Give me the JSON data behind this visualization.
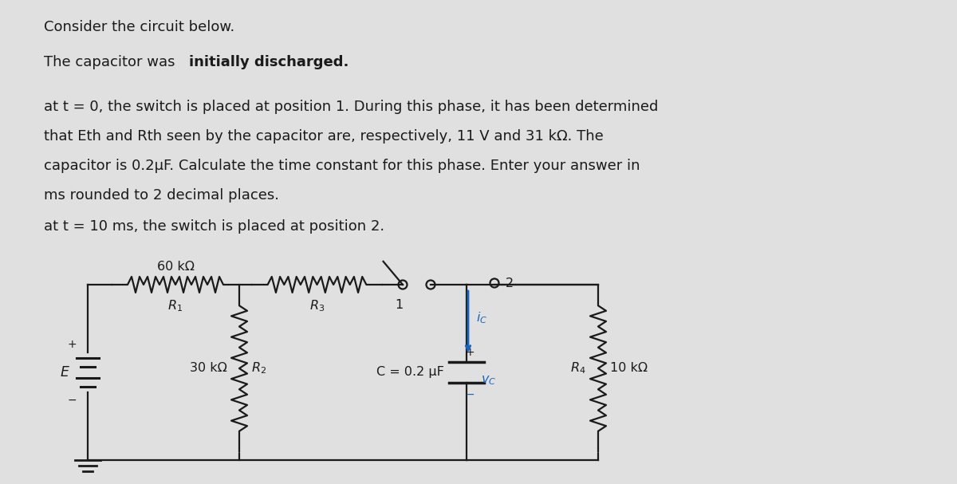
{
  "bg_color": "#e0e0e0",
  "text_color": "#1a1a1a",
  "blue_color": "#1565C0",
  "line_color": "#000000",
  "para1_line1": "at t = 0, the switch is placed at position 1. During this phase, it has been determined",
  "para1_line2": "that Eth and Rth seen by the capacitor are, respectively, 11 V and 31 kΩ. The",
  "para1_line3": "capacitor is 0.2µF. Calculate the time constant for this phase. Enter your answer in",
  "para1_line4": "ms rounded to 2 decimal places.",
  "para2": "at t = 10 ms, the switch is placed at position 2.",
  "label_60k": "60 kΩ",
  "label_30k": "30 kΩ",
  "label_10k": "10 kΩ",
  "label_C": "C = 0.2 μF",
  "figsize": [
    12.0,
    6.07
  ],
  "dpi": 100
}
